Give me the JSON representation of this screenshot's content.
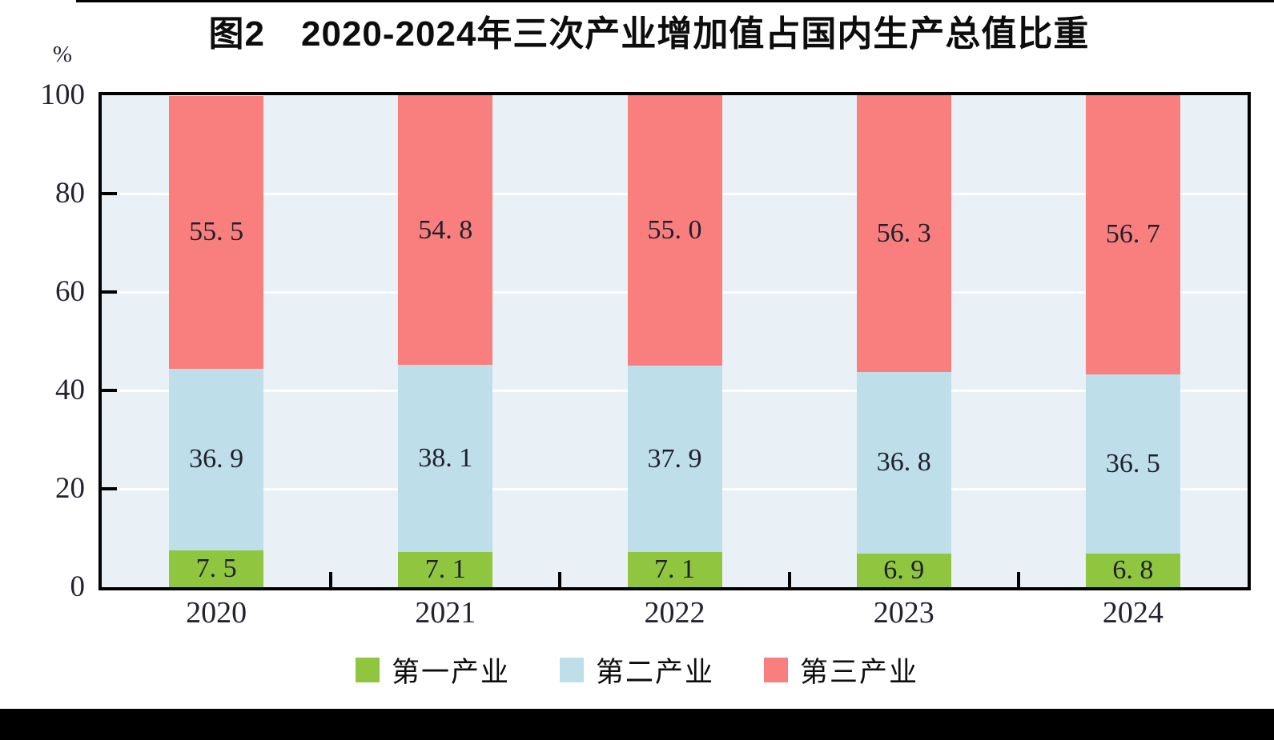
{
  "page": {
    "top_strip_color": "#000000",
    "bottom_strip_color": "#000000",
    "background_color": "#ffffff"
  },
  "chart_data": {
    "type": "bar",
    "stacked": true,
    "title": "图2　2020-2024年三次产业增加值占国内生产总值比重",
    "unit_label": "%",
    "categories": [
      "2020",
      "2021",
      "2022",
      "2023",
      "2024"
    ],
    "series": [
      {
        "name": "第一产业",
        "color": "#90c63f",
        "values": [
          7.5,
          7.1,
          7.1,
          6.9,
          6.8
        ],
        "labels": [
          "7. 5",
          "7. 1",
          "7. 1",
          "6. 9",
          "6. 8"
        ]
      },
      {
        "name": "第二产业",
        "color": "#bedfe9",
        "values": [
          36.9,
          38.1,
          37.9,
          36.8,
          36.5
        ],
        "labels": [
          "36. 9",
          "38. 1",
          "37. 9",
          "36. 8",
          "36. 5"
        ]
      },
      {
        "name": "第三产业",
        "color": "#f97f7f",
        "values": [
          55.5,
          54.8,
          55.0,
          56.3,
          56.7
        ],
        "labels": [
          "55. 5",
          "54. 8",
          "55. 0",
          "56. 3",
          "56. 7"
        ]
      }
    ],
    "ylim": [
      0,
      100
    ],
    "yticks": [
      0,
      20,
      40,
      60,
      80,
      100
    ],
    "ytick_labels": [
      "0",
      "20",
      "40",
      "60",
      "80",
      "100"
    ],
    "grid": "horizontal white lines every 20 units",
    "plot_background": "#e9f1f6",
    "axis_color": "#000000",
    "legend_position": "bottom"
  }
}
